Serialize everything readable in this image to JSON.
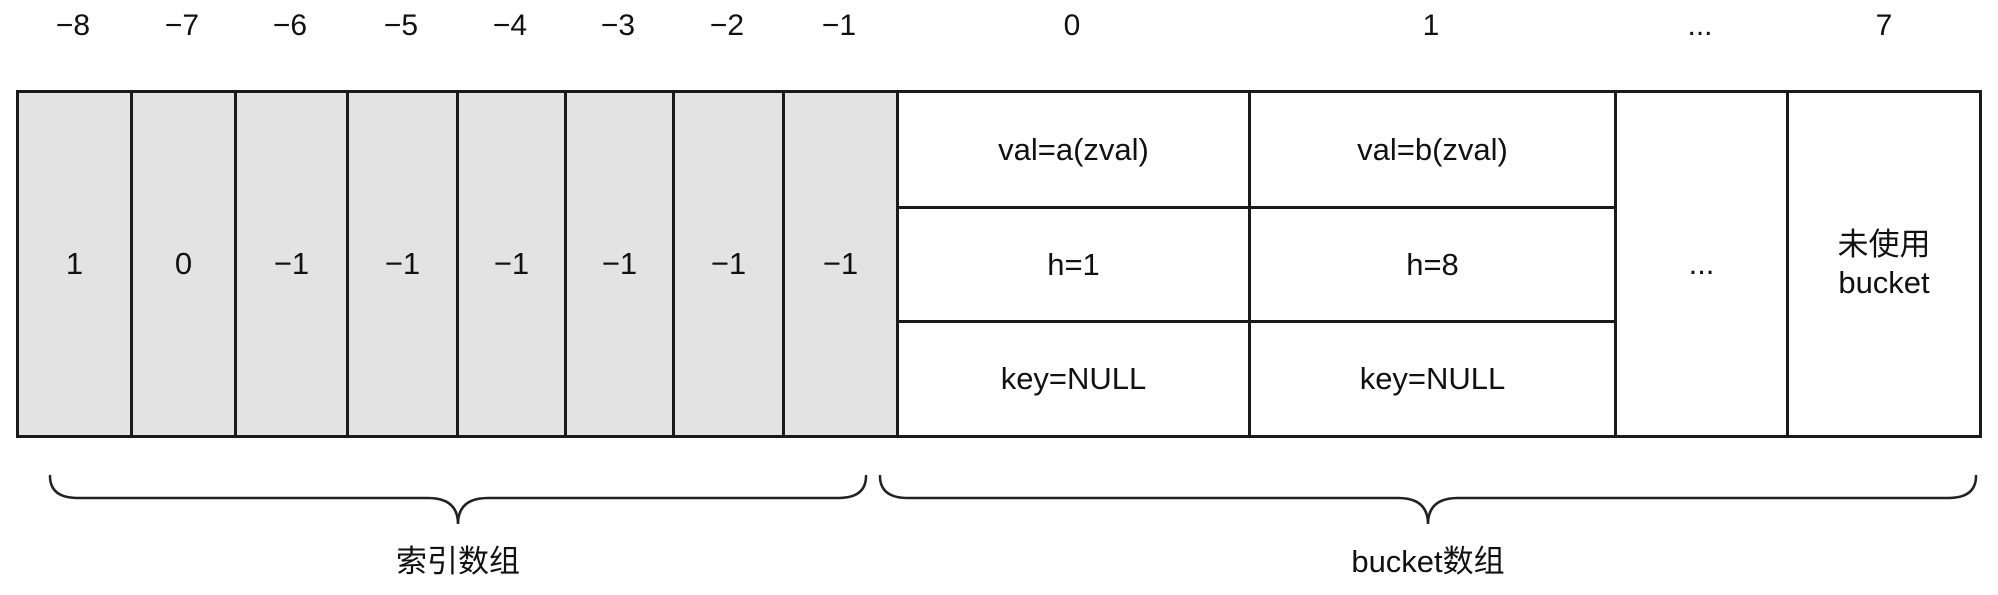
{
  "column_headers": [
    "−8",
    "−7",
    "−6",
    "−5",
    "−4",
    "−3",
    "−2",
    "−1",
    "0",
    "1",
    "...",
    "7"
  ],
  "index_array": {
    "values": [
      "1",
      "0",
      "−1",
      "−1",
      "−1",
      "−1",
      "−1",
      "−1"
    ],
    "caption": "索引数组",
    "fill_color": "#e3e3e3"
  },
  "bucket_array": {
    "buckets": [
      {
        "val": "val=a(zval)",
        "h": "h=1",
        "key": "key=NULL"
      },
      {
        "val": "val=b(zval)",
        "h": "h=8",
        "key": "key=NULL"
      }
    ],
    "ellipsis": "...",
    "unused_line1": "未使用",
    "unused_line2": "bucket",
    "caption": "bucket数组"
  }
}
